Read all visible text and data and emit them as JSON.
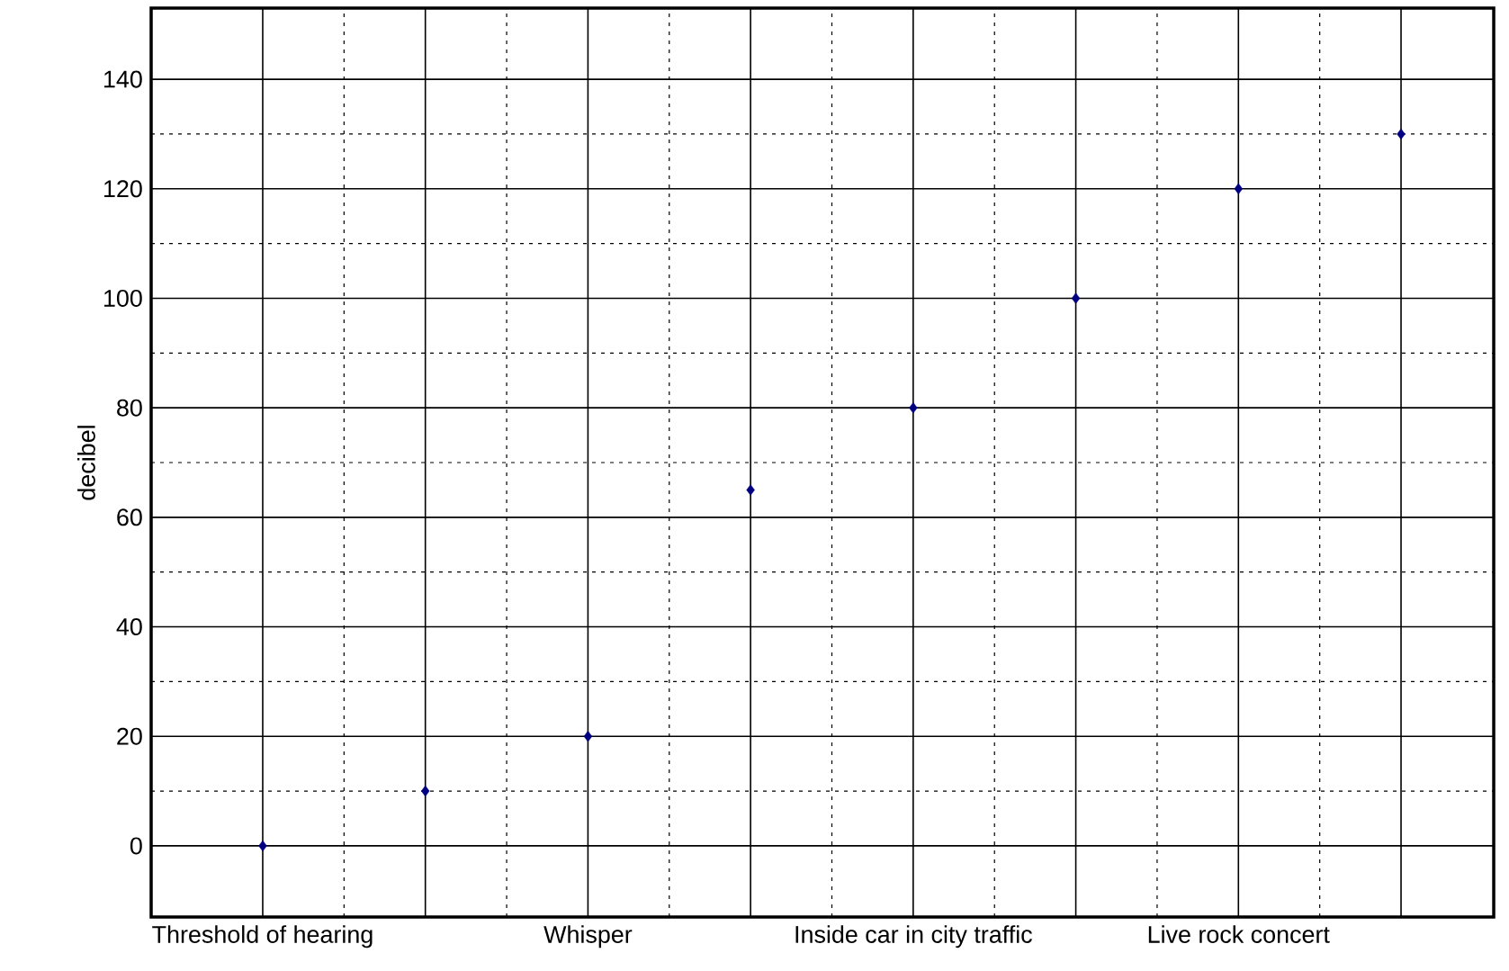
{
  "chart_data": {
    "type": "scatter",
    "ylabel": "decibel",
    "categories": [
      "Threshold of hearing",
      null,
      "Whisper",
      null,
      "Inside car in city traffic",
      null,
      "Live rock concert",
      null
    ],
    "series": [
      {
        "color": "#000080",
        "values": [
          0,
          10,
          20,
          65,
          80,
          100,
          120,
          130
        ]
      }
    ],
    "ylim": [
      -13,
      153
    ],
    "yticks": [
      0,
      20,
      40,
      60,
      80,
      100,
      120,
      140
    ],
    "grid": true,
    "marker": "diamond"
  }
}
